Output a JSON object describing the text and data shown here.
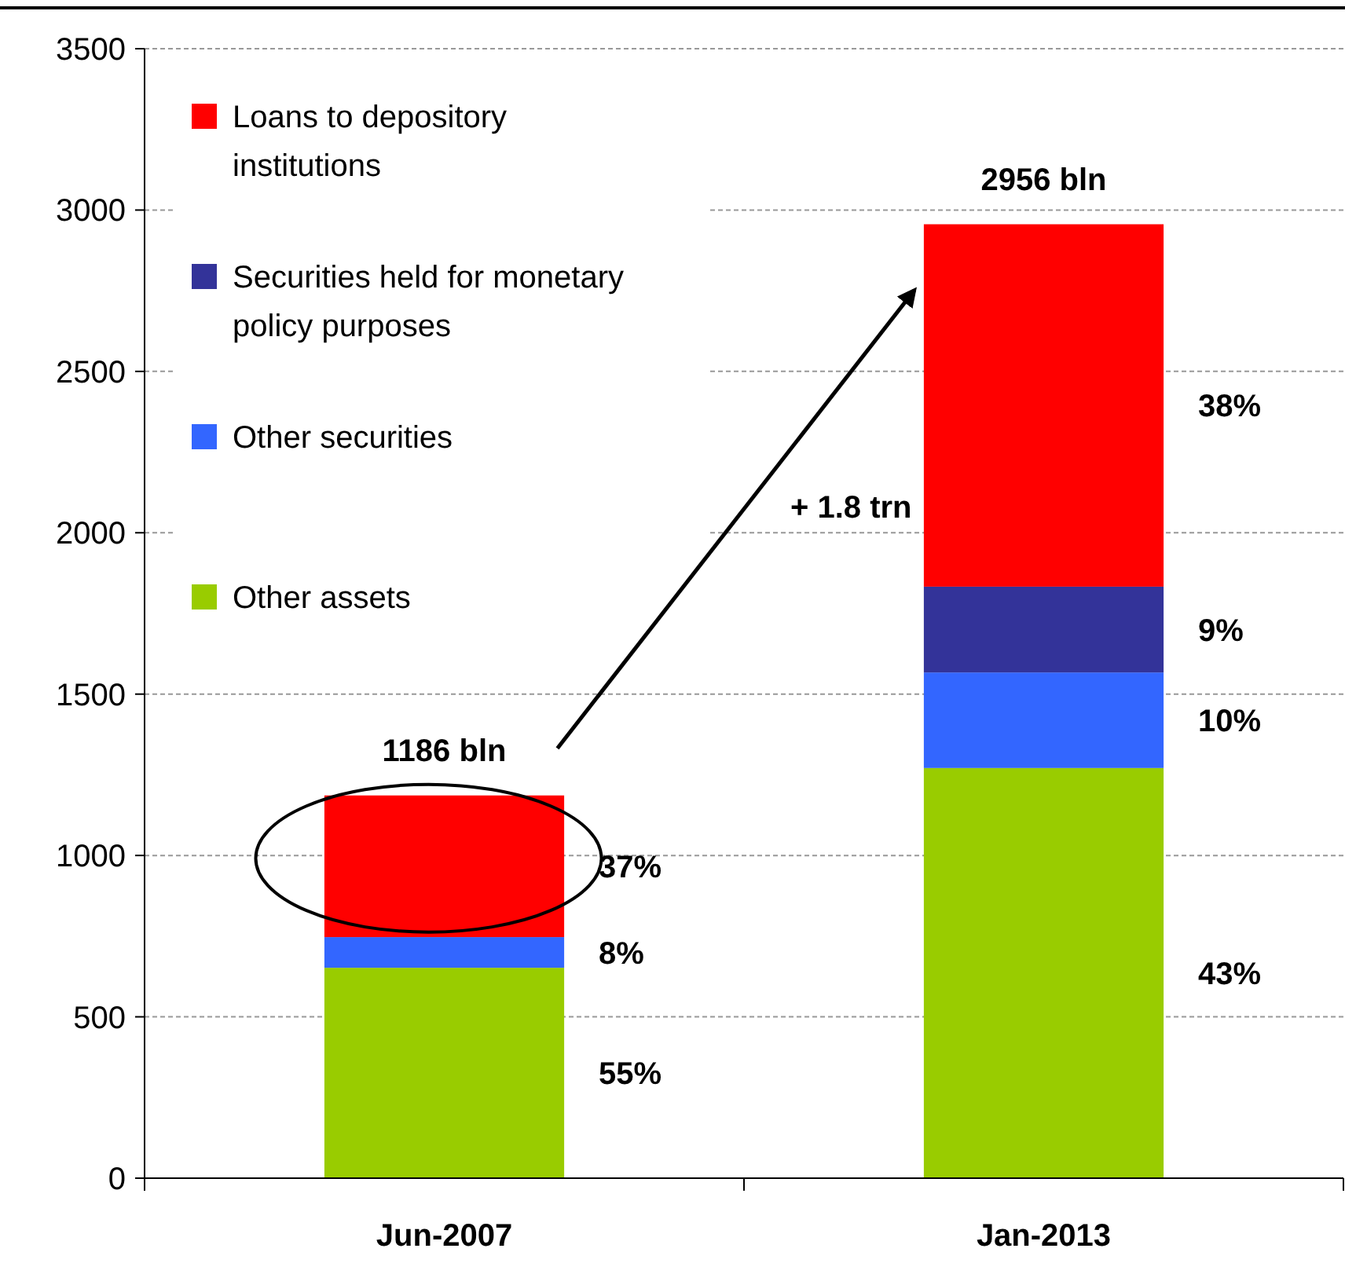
{
  "chart_data": {
    "type": "bar",
    "stacked": true,
    "categories": [
      "Jun-2007",
      "Jan-2013"
    ],
    "series": [
      {
        "name": "Other assets",
        "color": "#99cc00",
        "values": [
          652,
          1271
        ]
      },
      {
        "name": "Other securities",
        "color": "#3366ff",
        "values": [
          95,
          296
        ]
      },
      {
        "name": "Securities held for monetary policy purposes",
        "color": "#333399",
        "values": [
          0,
          266
        ]
      },
      {
        "name": "Loans to depository institutions",
        "color": "#ff0000",
        "values": [
          439,
          1123
        ]
      }
    ],
    "totals": [
      "1186 bln",
      "2956 bln"
    ],
    "annotations": [
      "+ 1.8 trn",
      "55%",
      "8%",
      "37%",
      "43%",
      "10%",
      "9%",
      "38%"
    ],
    "ylim": [
      0,
      3500
    ],
    "yticks": [
      0,
      500,
      1000,
      1500,
      2000,
      2500,
      3000,
      3500
    ],
    "grid": "y",
    "legend": "top left"
  }
}
